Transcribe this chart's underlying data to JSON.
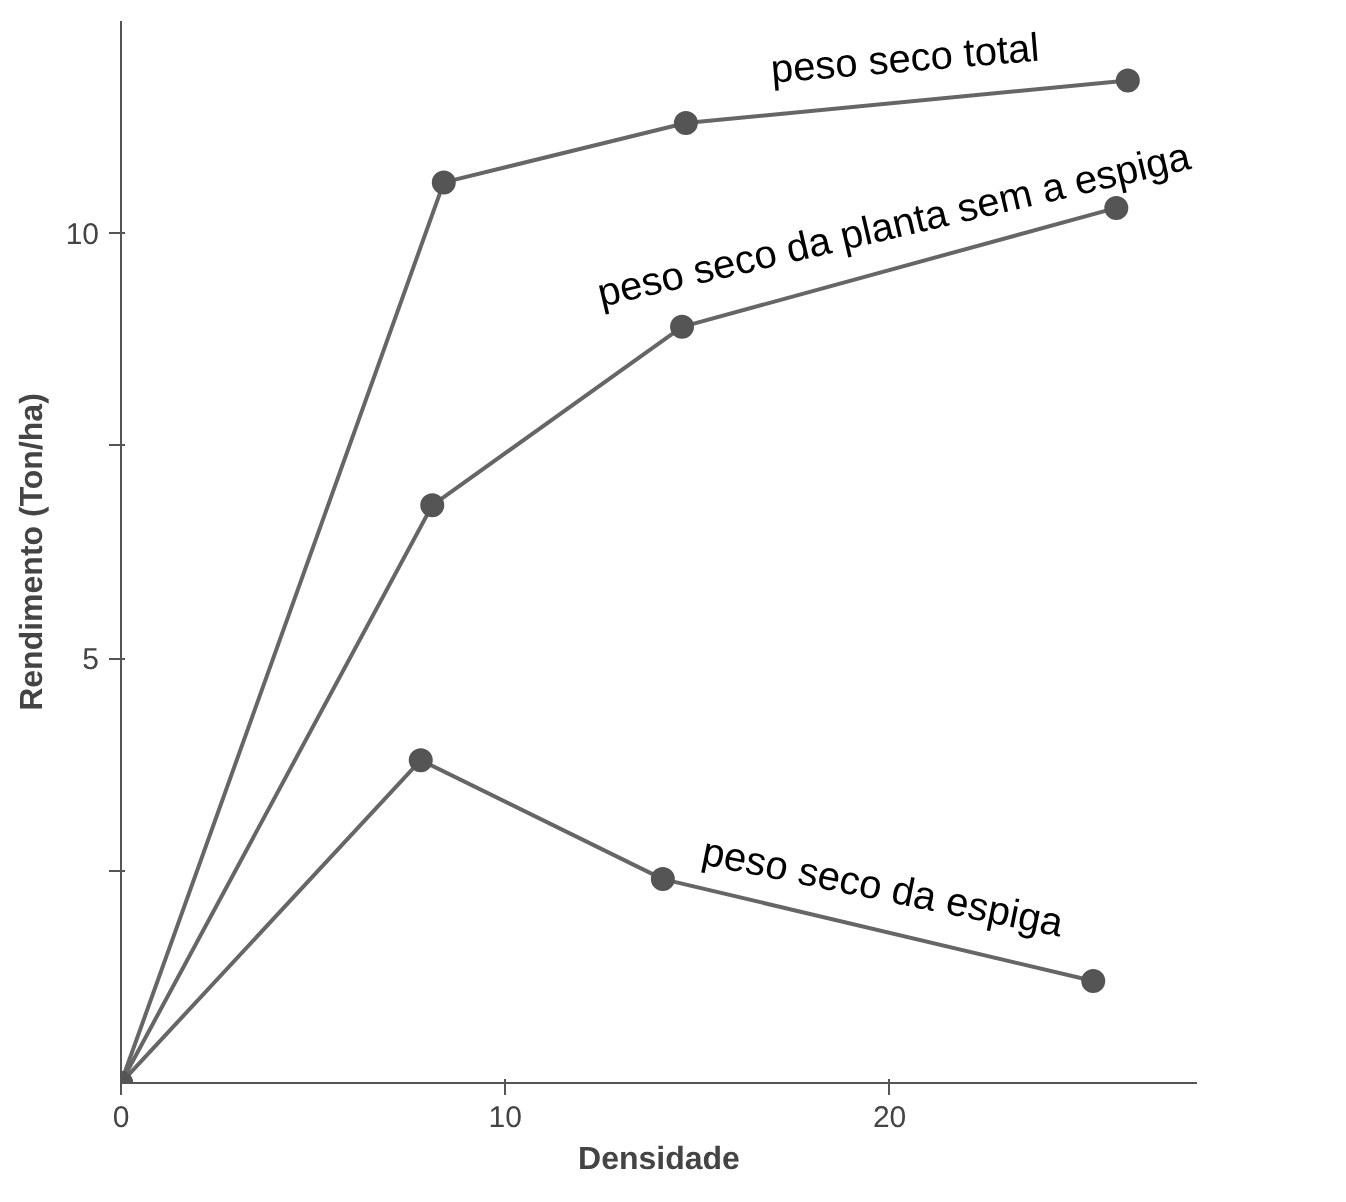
{
  "chart_data": {
    "type": "line",
    "xlabel": "Densidade",
    "ylabel": "Rendimento (Ton/ha)",
    "xlim": [
      0,
      28
    ],
    "ylim": [
      0,
      12.5
    ],
    "xticks": [
      0,
      10,
      20
    ],
    "yticks": [
      {
        "value": 2.5,
        "label": null
      },
      5,
      {
        "value": 7.5,
        "label": null
      },
      10
    ],
    "marker": "circle",
    "grid": false,
    "series": [
      {
        "name": "peso seco total",
        "color": "#666666",
        "x": [
          0,
          8.4,
          14.7,
          26.2
        ],
        "values": [
          0,
          10.6,
          11.3,
          11.8
        ]
      },
      {
        "name": "peso seco da planta sem a espiga",
        "color": "#666666",
        "x": [
          0,
          8.1,
          14.6,
          25.9
        ],
        "values": [
          0,
          6.8,
          8.9,
          10.3
        ]
      },
      {
        "name": "peso seco da espiga",
        "color": "#666666",
        "x": [
          0,
          7.8,
          14.1,
          25.3
        ],
        "values": [
          0,
          3.8,
          2.4,
          1.2
        ]
      }
    ]
  }
}
